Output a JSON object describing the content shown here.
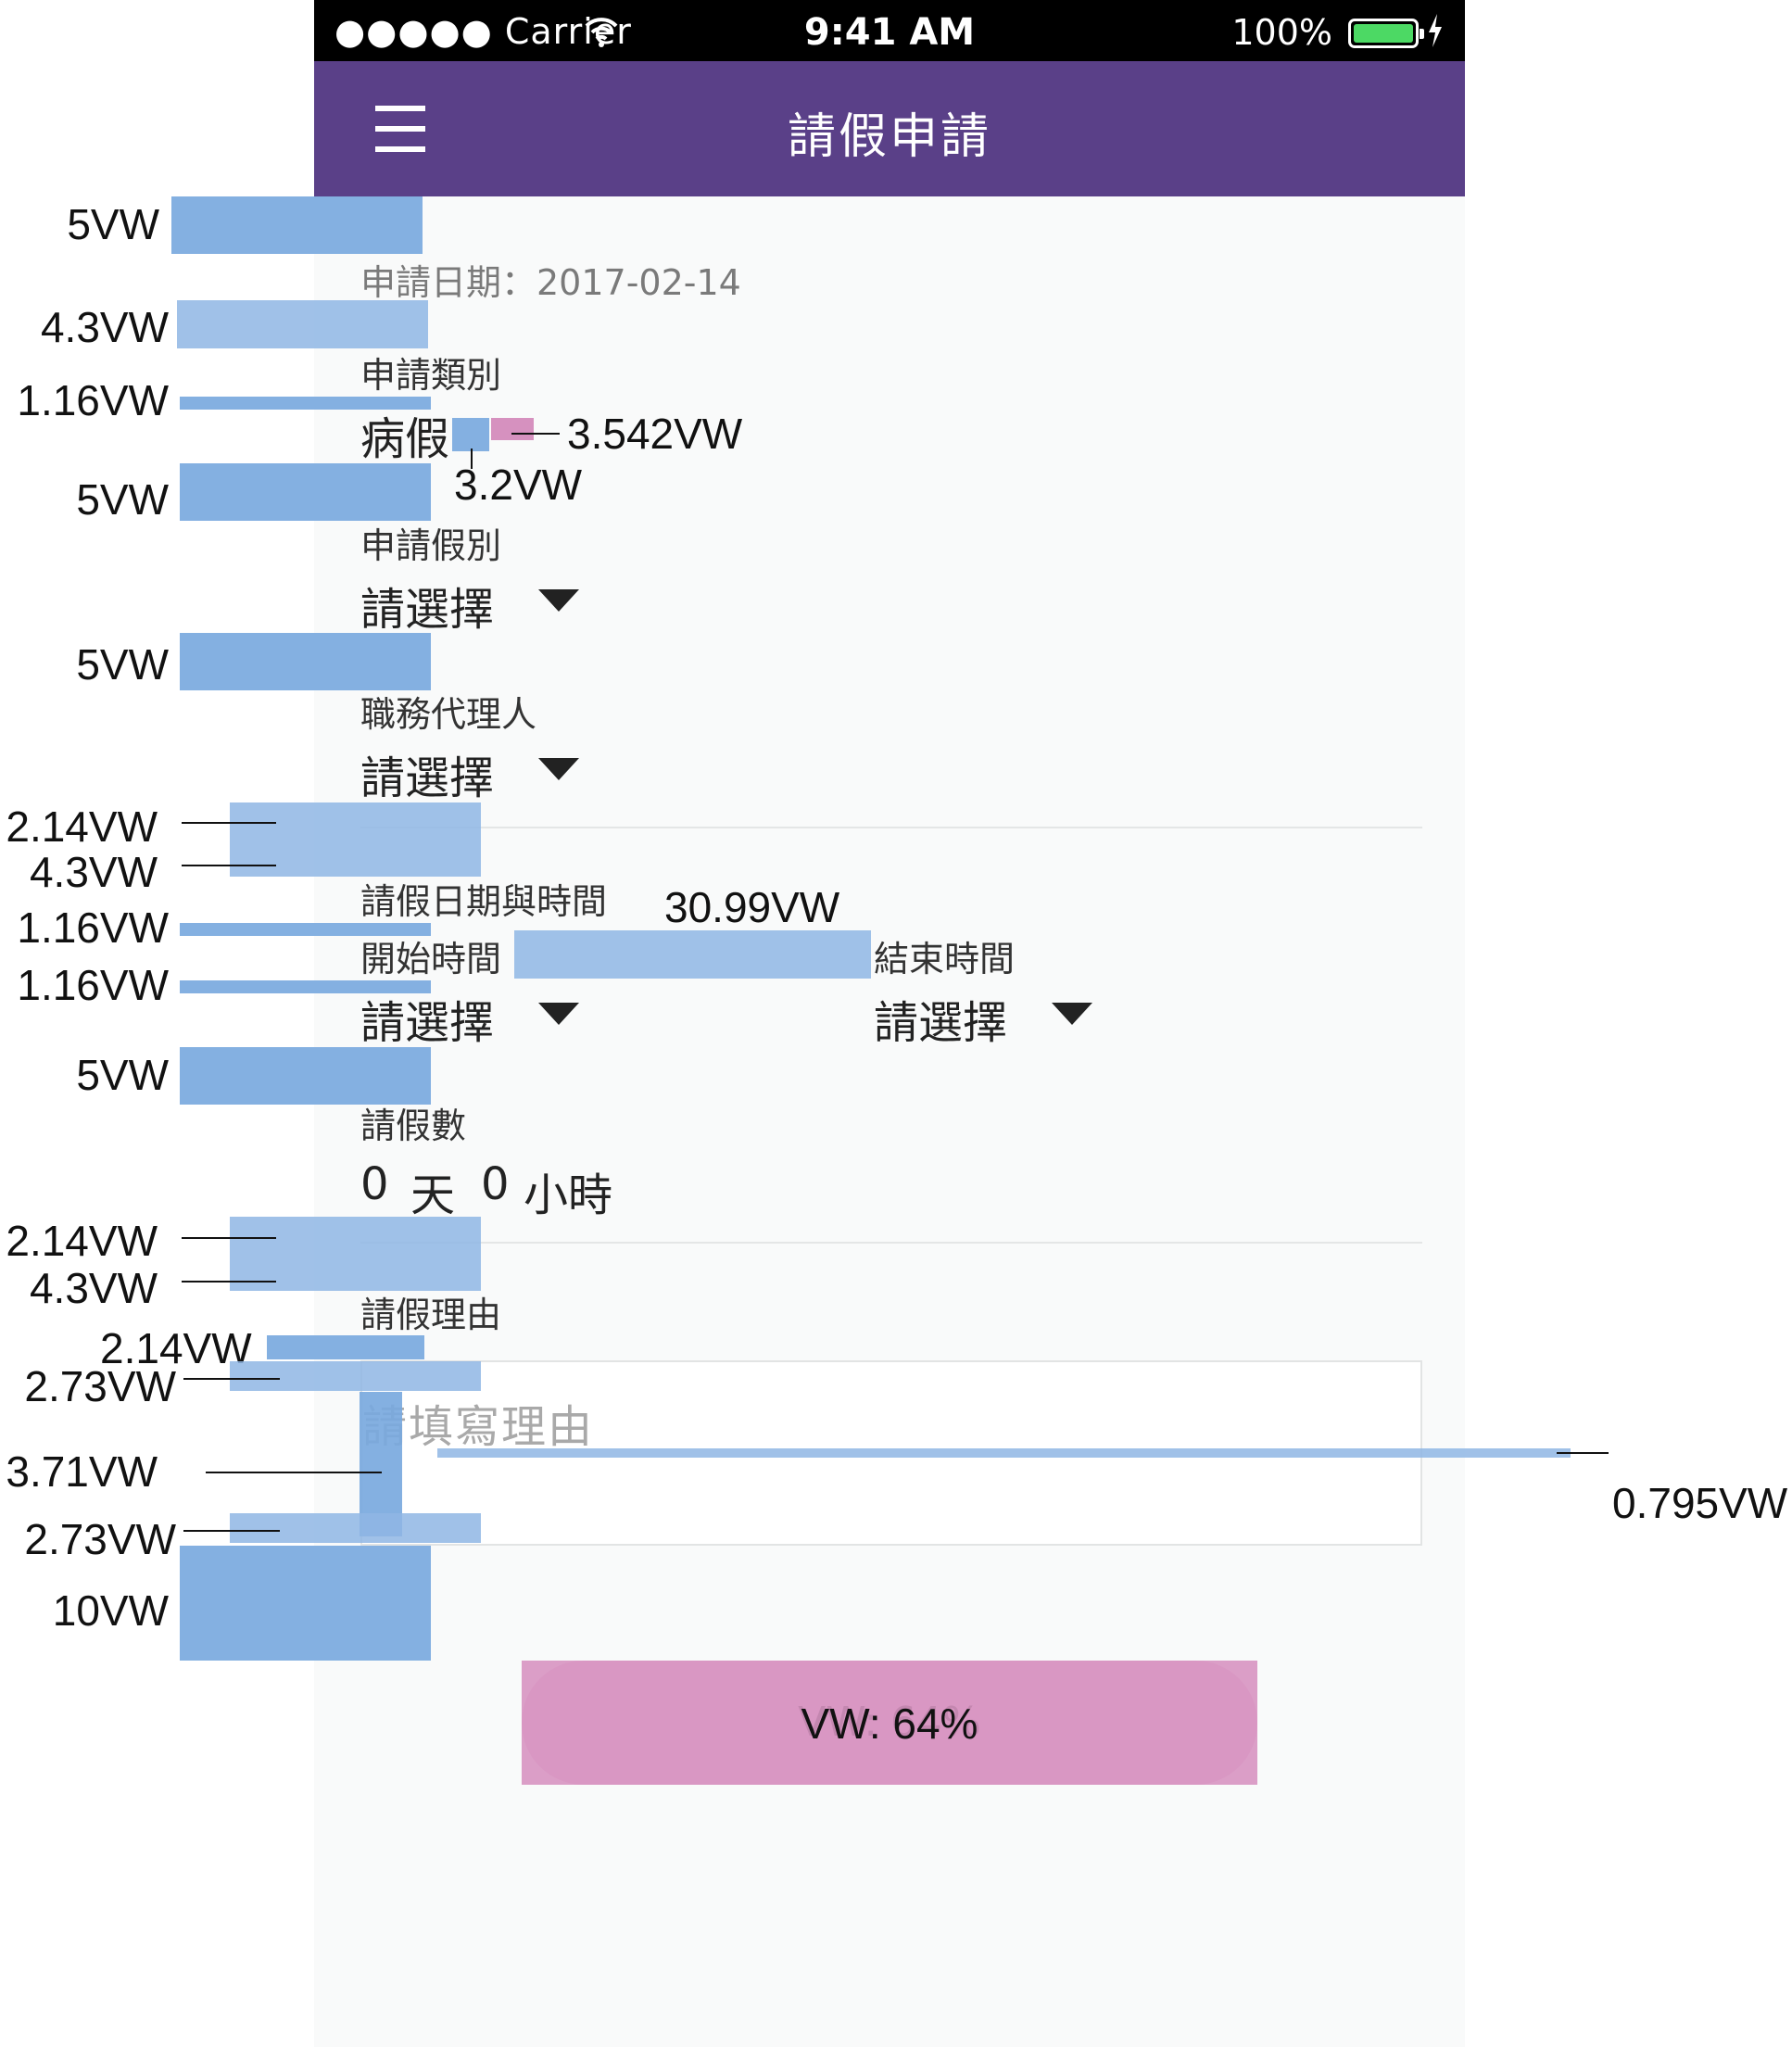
{
  "status_bar": {
    "carrier": "●●●●● Carrier",
    "time": "9:41 AM",
    "battery": "100%"
  },
  "nav": {
    "title": "請假申請",
    "menu_icon": "hamburger-icon"
  },
  "form": {
    "apply_date": "申請日期：2017-02-14",
    "category_label": "申請類別",
    "category_value": "病假",
    "leave_type_label": "申請假別",
    "leave_type_value": "請選擇",
    "agent_label": "職務代理人",
    "agent_value": "請選擇",
    "datetime_label": "請假日期與時間",
    "start_label": "開始時間",
    "start_value": "請選擇",
    "end_label": "結束時間",
    "end_value": "請選擇",
    "count_label": "請假數",
    "days_value": "0",
    "days_unit": "天",
    "hours_value": "0",
    "hours_unit": "小時",
    "reason_label": "請假理由",
    "reason_placeholder": "請填寫理由",
    "submit_label": "VW: 64%"
  },
  "annotations": {
    "a1": "5VW",
    "a2": "4.3VW",
    "a3": "1.16VW",
    "a4": "5VW",
    "a5": "3.542VW",
    "a6": "3.2VW",
    "a7": "5VW",
    "a8": "2.14VW",
    "a9": "4.3VW",
    "a10": "1.16VW",
    "a11": "1.16VW",
    "a12": "30.99VW",
    "a13": "5VW",
    "a14": "2.14VW",
    "a15": "4.3VW",
    "a16": "2.14VW",
    "a17": "2.73VW",
    "a18": "3.71VW",
    "a19": "2.73VW",
    "a20": "10VW",
    "a21": "0.795VW"
  },
  "colors": {
    "nav": "#5a4088",
    "overlay_blue": "#7aa9de",
    "overlay_pink": "#d691bf",
    "battery": "#4cd964"
  }
}
